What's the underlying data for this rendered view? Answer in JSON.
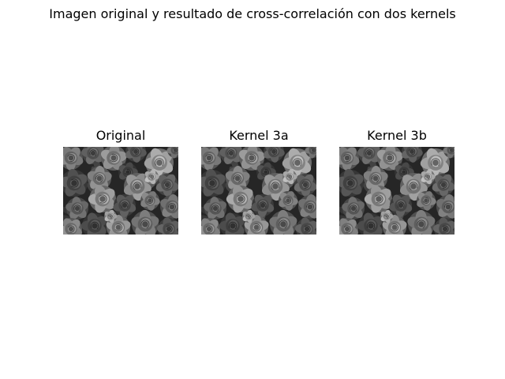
{
  "figure": {
    "title": "Imagen original y resultado de cross-correlación con dos kernels"
  },
  "panels": [
    {
      "title": "Original",
      "image": "grayscale-roses-photo"
    },
    {
      "title": "Kernel 3a",
      "image": "grayscale-roses-photo"
    },
    {
      "title": "Kernel 3b",
      "image": "grayscale-roses-photo"
    }
  ],
  "colors": {
    "background": "#ffffff",
    "text": "#000000"
  }
}
